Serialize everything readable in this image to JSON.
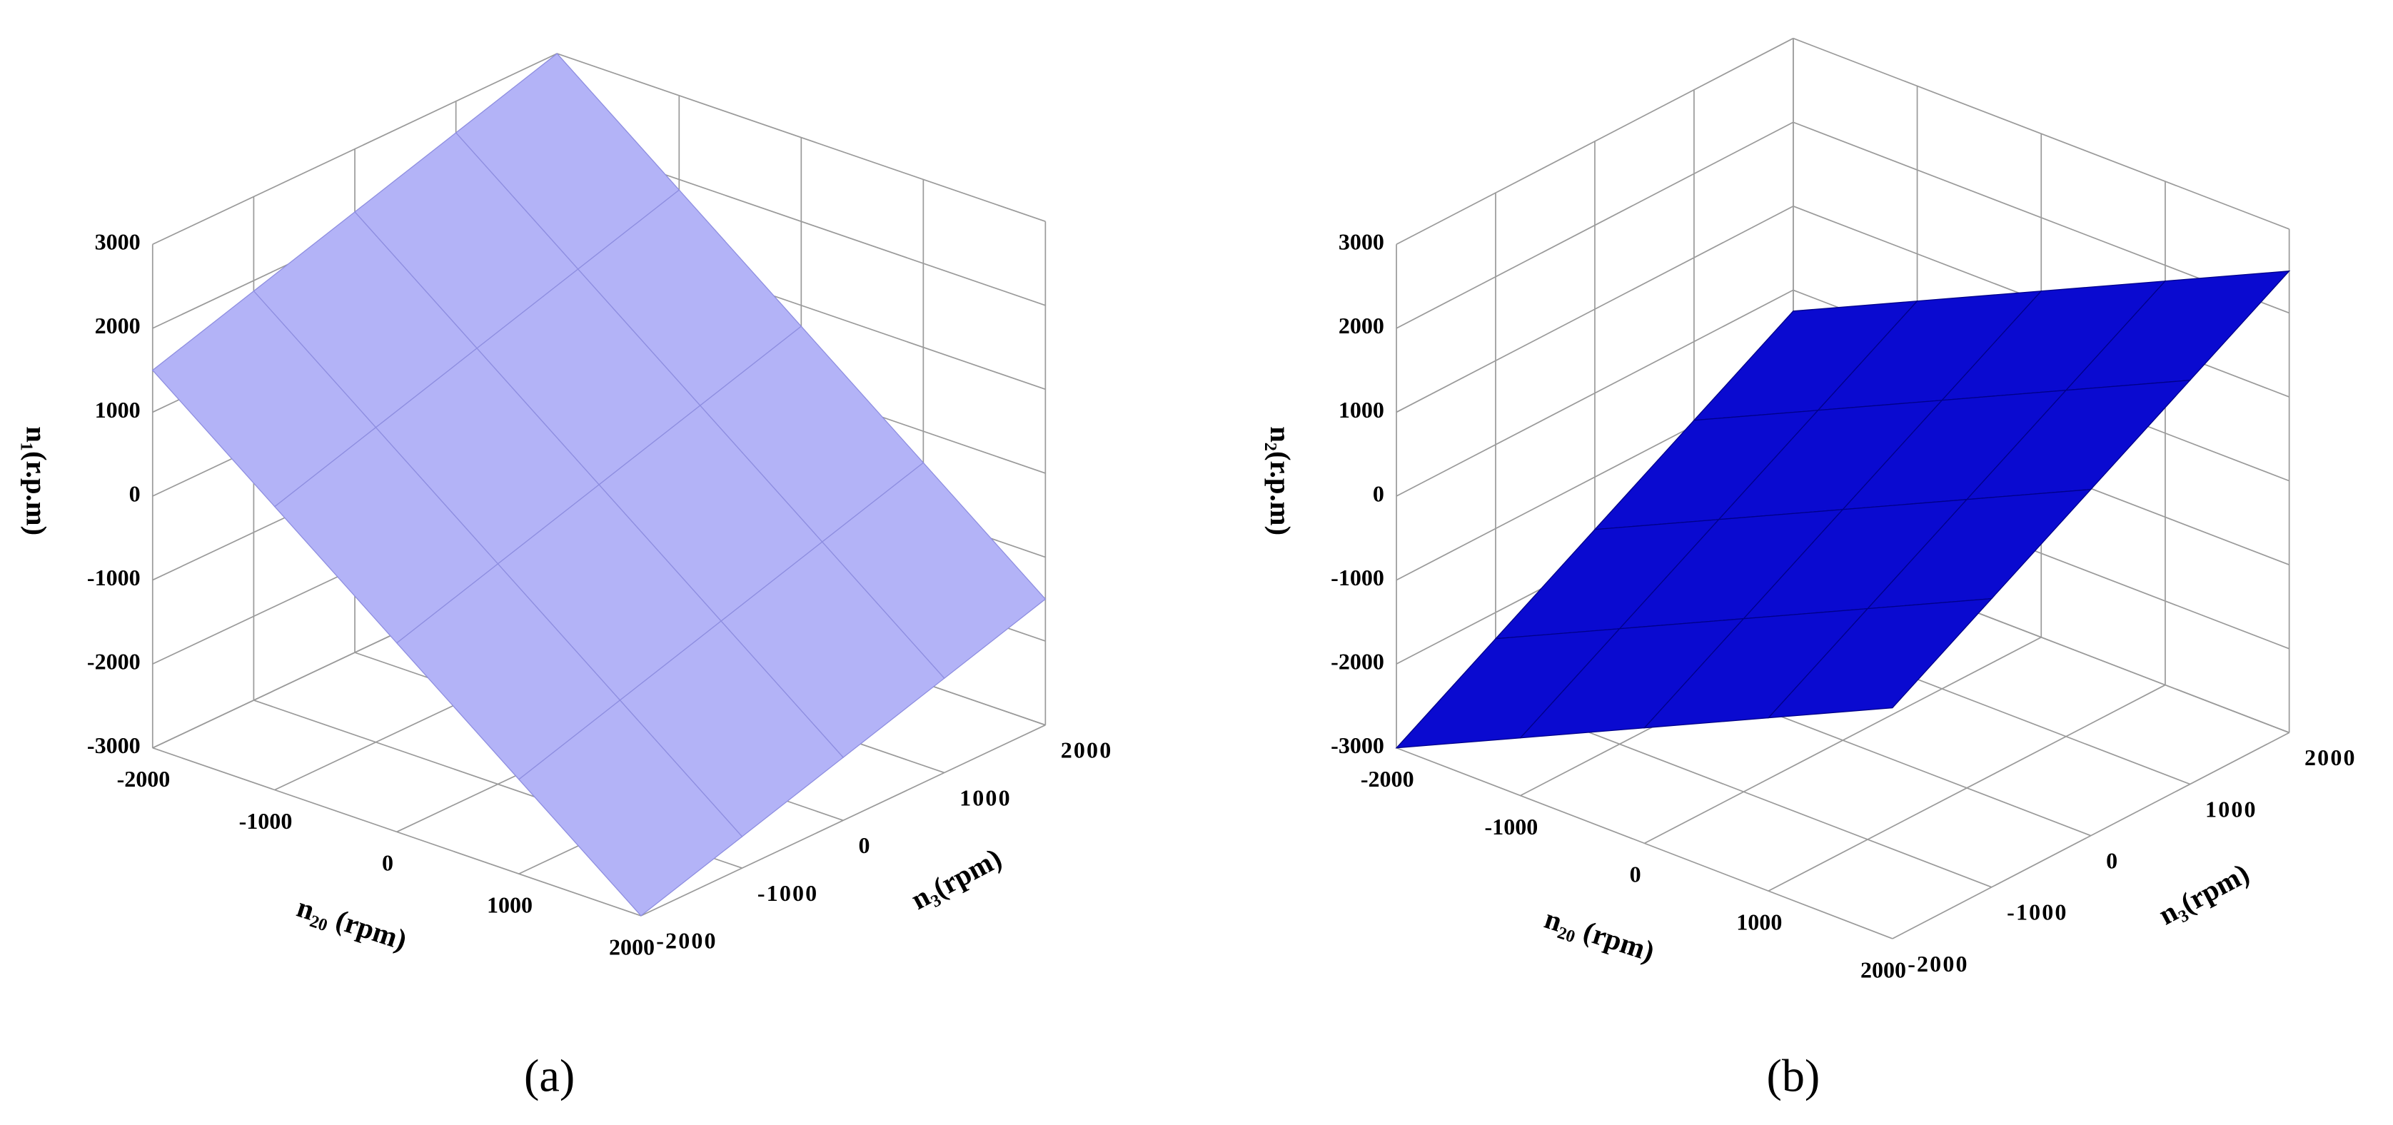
{
  "chart_data": [
    {
      "type": "surface",
      "panel_label": "(a)",
      "x_label": "n₂₀ (rpm)",
      "y_label": "n₃(rpm)",
      "z_label": "n₁(r.p.m)",
      "xlim": [
        -2000,
        2000
      ],
      "ylim": [
        -2000,
        2000
      ],
      "zlim": [
        -3000,
        3000
      ],
      "xticks": [
        -2000,
        -1000,
        0,
        1000,
        2000
      ],
      "yticks": [
        -2000,
        -1000,
        0,
        1000,
        2000
      ],
      "zticks": [
        -3000,
        -2000,
        -1000,
        0,
        1000,
        2000,
        3000
      ],
      "grid": true,
      "color": "#b3b3f7",
      "edge_color": "#8e8ee0",
      "x": [
        -2000,
        -1000,
        0,
        1000,
        2000
      ],
      "y": [
        -2000,
        -1000,
        0,
        1000,
        2000
      ],
      "z": [
        [
          1500,
          1875,
          2250,
          2625,
          3000
        ],
        [
          375,
          750,
          1125,
          1500,
          1875
        ],
        [
          -750,
          -375,
          0,
          375,
          750
        ],
        [
          -1875,
          -1500,
          -1125,
          -750,
          -375
        ],
        [
          -3000,
          -2625,
          -2250,
          -1875,
          -1500
        ]
      ]
    },
    {
      "type": "surface",
      "panel_label": "(b)",
      "x_label": "n₂₀ (rpm)",
      "y_label": "n₃(rpm)",
      "z_label": "n₂(r.p.m)",
      "xlim": [
        -2000,
        2000
      ],
      "ylim": [
        -2000,
        2000
      ],
      "zlim": [
        -3000,
        3000
      ],
      "xticks": [
        -2000,
        -1000,
        0,
        1000,
        2000
      ],
      "yticks": [
        -2000,
        -1000,
        0,
        1000,
        2000
      ],
      "zticks": [
        -3000,
        -2000,
        -1000,
        0,
        1000,
        2000,
        3000
      ],
      "grid": true,
      "color": "#0a0ad0",
      "edge_color": "#00008a",
      "x": [
        -2000,
        -1000,
        0,
        1000,
        2000
      ],
      "y": [
        -2000,
        -1000,
        0,
        1000,
        2000
      ],
      "z": [
        [
          -3000,
          -2312.5,
          -1625,
          -937.5,
          -250
        ],
        [
          -2312.5,
          -1625,
          -937.5,
          -250,
          437.5
        ],
        [
          -1625,
          -937.5,
          -250,
          437.5,
          1125
        ],
        [
          -937.5,
          -250,
          437.5,
          1125,
          1812.5
        ],
        [
          -250,
          437.5,
          1125,
          1812.5,
          2500
        ]
      ]
    }
  ]
}
